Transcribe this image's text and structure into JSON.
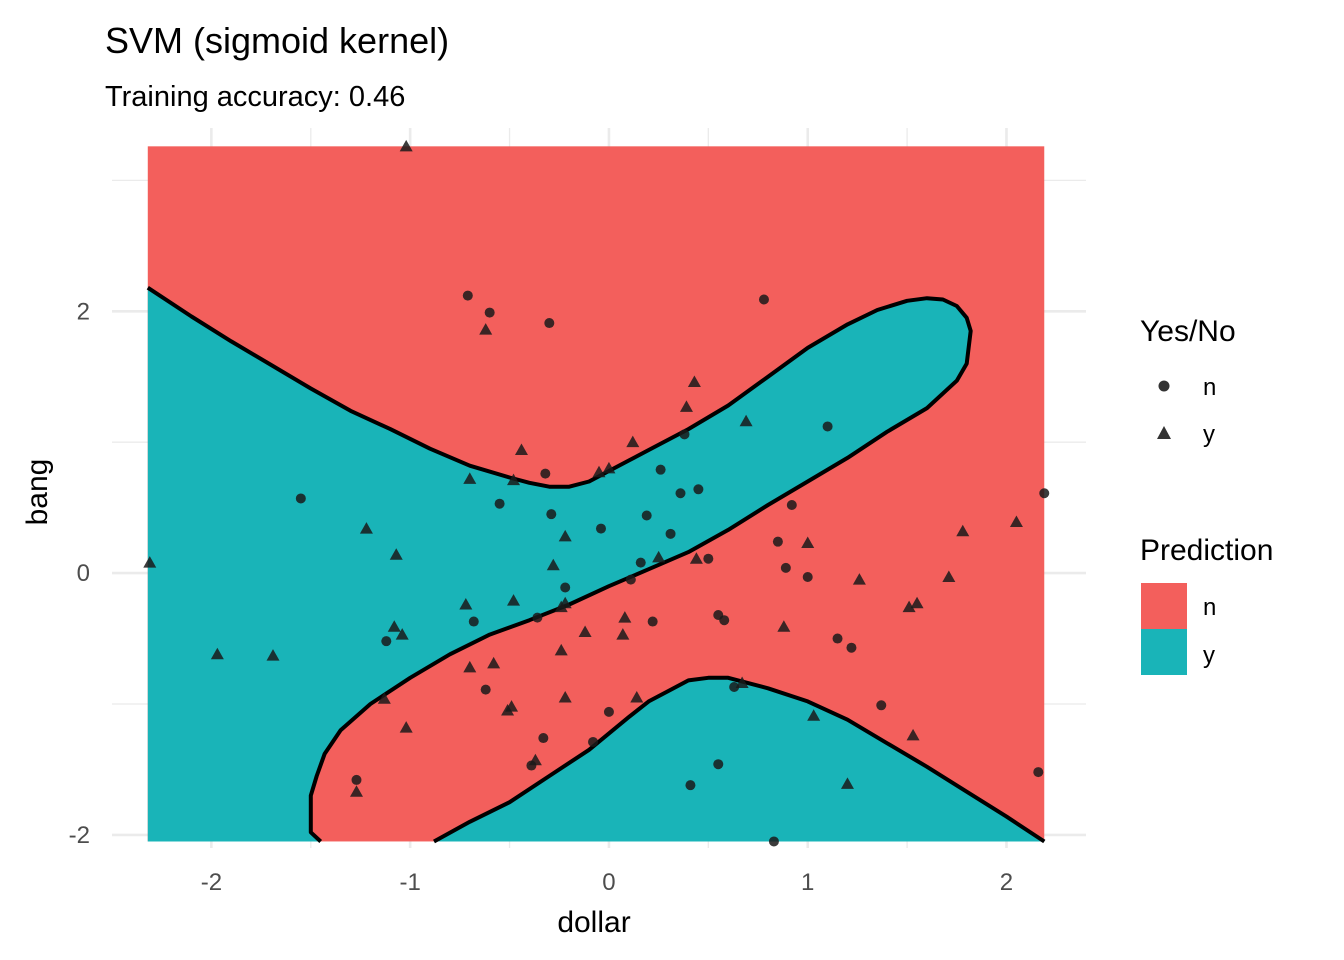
{
  "chart_data": {
    "type": "scatter",
    "title": "SVM (sigmoid kernel)",
    "subtitle": "Training accuracy: 0.46",
    "xlabel": "dollar",
    "ylabel": "bang",
    "xlim": [
      -2.5,
      2.4
    ],
    "ylim": [
      -2.1,
      3.4
    ],
    "x_ticks": [
      "-2",
      "-1",
      "0",
      "1",
      "2"
    ],
    "x_tick_values": [
      -2,
      -1,
      0,
      1,
      2
    ],
    "y_ticks": [
      "2",
      "0",
      "-2"
    ],
    "y_tick_values": [
      2,
      0,
      -2
    ],
    "grid": true,
    "colors": {
      "n": "#F35F5C",
      "y": "#19B4B8",
      "points": "#1a1a1a",
      "boundary": "#000000"
    },
    "region": {
      "xmin": -2.32,
      "xmax": 2.19,
      "ymin": -2.05,
      "ymax": 3.26
    },
    "decision_boundaries": [
      [
        [
          -2.32,
          2.18
        ],
        [
          -2.1,
          1.96
        ],
        [
          -1.9,
          1.77
        ],
        [
          -1.7,
          1.59
        ],
        [
          -1.5,
          1.41
        ],
        [
          -1.3,
          1.24
        ],
        [
          -1.1,
          1.1
        ],
        [
          -0.9,
          0.95
        ],
        [
          -0.7,
          0.82
        ],
        [
          -0.5,
          0.73
        ],
        [
          -0.4,
          0.69
        ],
        [
          -0.3,
          0.66
        ],
        [
          -0.2,
          0.66
        ],
        [
          -0.1,
          0.7
        ],
        [
          0.0,
          0.78
        ],
        [
          0.1,
          0.86
        ],
        [
          0.2,
          0.94
        ],
        [
          0.4,
          1.1
        ],
        [
          0.6,
          1.28
        ],
        [
          0.8,
          1.5
        ],
        [
          1.0,
          1.72
        ],
        [
          1.2,
          1.9
        ],
        [
          1.35,
          2.01
        ],
        [
          1.5,
          2.08
        ],
        [
          1.6,
          2.1
        ],
        [
          1.68,
          2.09
        ],
        [
          1.75,
          2.04
        ],
        [
          1.8,
          1.95
        ],
        [
          1.82,
          1.85
        ],
        [
          1.8,
          1.6
        ],
        [
          1.75,
          1.47
        ],
        [
          1.6,
          1.26
        ],
        [
          1.4,
          1.08
        ],
        [
          1.2,
          0.88
        ],
        [
          1.0,
          0.7
        ],
        [
          0.8,
          0.52
        ],
        [
          0.6,
          0.33
        ],
        [
          0.4,
          0.16
        ],
        [
          0.2,
          0.03
        ],
        [
          0.0,
          -0.1
        ],
        [
          -0.2,
          -0.24
        ],
        [
          -0.4,
          -0.36
        ],
        [
          -0.6,
          -0.47
        ],
        [
          -0.8,
          -0.62
        ],
        [
          -1.0,
          -0.8
        ],
        [
          -1.2,
          -1.0
        ],
        [
          -1.35,
          -1.2
        ],
        [
          -1.43,
          -1.38
        ],
        [
          -1.47,
          -1.55
        ],
        [
          -1.5,
          -1.7
        ],
        [
          -1.5,
          -1.98
        ],
        [
          -1.45,
          -2.05
        ]
      ],
      [
        [
          -0.88,
          -2.05
        ],
        [
          -0.7,
          -1.9
        ],
        [
          -0.5,
          -1.75
        ],
        [
          -0.3,
          -1.55
        ],
        [
          -0.1,
          -1.35
        ],
        [
          0.1,
          -1.1
        ],
        [
          0.2,
          -0.98
        ],
        [
          0.3,
          -0.9
        ],
        [
          0.4,
          -0.82
        ],
        [
          0.5,
          -0.8
        ],
        [
          0.6,
          -0.8
        ],
        [
          0.7,
          -0.84
        ],
        [
          0.8,
          -0.88
        ],
        [
          1.0,
          -0.98
        ],
        [
          1.2,
          -1.12
        ],
        [
          1.4,
          -1.3
        ],
        [
          1.6,
          -1.48
        ],
        [
          1.8,
          -1.67
        ],
        [
          2.0,
          -1.86
        ],
        [
          2.19,
          -2.05
        ]
      ]
    ],
    "legend": {
      "shape_title": "Yes/No",
      "shape_items": [
        {
          "label": "n",
          "shape": "circle"
        },
        {
          "label": "y",
          "shape": "triangle"
        }
      ],
      "fill_title": "Prediction",
      "fill_items": [
        {
          "label": "n",
          "color": "#F35F5C"
        },
        {
          "label": "y",
          "color": "#19B4B8"
        }
      ]
    },
    "series": [
      {
        "name": "n",
        "shape": "circle",
        "points": [
          [
            -0.71,
            2.12
          ],
          [
            -0.6,
            1.99
          ],
          [
            -0.3,
            1.91
          ],
          [
            0.78,
            2.09
          ],
          [
            1.1,
            1.12
          ],
          [
            0.38,
            1.06
          ],
          [
            -0.32,
            0.76
          ],
          [
            0.26,
            0.79
          ],
          [
            0.36,
            0.61
          ],
          [
            0.45,
            0.64
          ],
          [
            -1.55,
            0.57
          ],
          [
            -0.55,
            0.53
          ],
          [
            -0.29,
            0.45
          ],
          [
            0.92,
            0.52
          ],
          [
            0.19,
            0.44
          ],
          [
            -0.04,
            0.34
          ],
          [
            0.31,
            0.3
          ],
          [
            0.85,
            0.24
          ],
          [
            0.5,
            0.11
          ],
          [
            0.16,
            0.08
          ],
          [
            0.89,
            0.04
          ],
          [
            1.0,
            -0.03
          ],
          [
            0.11,
            -0.05
          ],
          [
            -0.22,
            -0.11
          ],
          [
            -0.36,
            -0.34
          ],
          [
            -0.68,
            -0.37
          ],
          [
            0.22,
            -0.37
          ],
          [
            0.55,
            -0.32
          ],
          [
            0.58,
            -0.36
          ],
          [
            -1.12,
            -0.52
          ],
          [
            1.15,
            -0.5
          ],
          [
            1.22,
            -0.57
          ],
          [
            -0.62,
            -0.89
          ],
          [
            1.37,
            -1.01
          ],
          [
            0.0,
            -1.06
          ],
          [
            0.63,
            -0.87
          ],
          [
            -0.33,
            -1.26
          ],
          [
            -0.08,
            -1.29
          ],
          [
            -0.39,
            -1.47
          ],
          [
            0.55,
            -1.46
          ],
          [
            -1.27,
            -1.58
          ],
          [
            0.41,
            -1.62
          ],
          [
            2.16,
            -1.52
          ],
          [
            0.83,
            -2.05
          ],
          [
            2.19,
            0.61
          ]
        ]
      },
      {
        "name": "y",
        "shape": "triangle",
        "points": [
          [
            -1.02,
            3.26
          ],
          [
            -0.62,
            1.86
          ],
          [
            0.43,
            1.46
          ],
          [
            0.39,
            1.27
          ],
          [
            0.69,
            1.16
          ],
          [
            -0.44,
            0.94
          ],
          [
            0.12,
            1.0
          ],
          [
            -0.7,
            0.72
          ],
          [
            -0.48,
            0.71
          ],
          [
            0.0,
            0.8
          ],
          [
            -0.05,
            0.77
          ],
          [
            -1.22,
            0.34
          ],
          [
            -0.22,
            0.28
          ],
          [
            -1.07,
            0.14
          ],
          [
            0.44,
            0.11
          ],
          [
            0.25,
            0.12
          ],
          [
            1.0,
            0.23
          ],
          [
            -0.28,
            0.06
          ],
          [
            -2.31,
            0.08
          ],
          [
            2.05,
            0.39
          ],
          [
            1.78,
            0.32
          ],
          [
            1.71,
            -0.03
          ],
          [
            1.26,
            -0.05
          ],
          [
            1.51,
            -0.26
          ],
          [
            1.55,
            -0.23
          ],
          [
            -0.48,
            -0.21
          ],
          [
            -0.22,
            -0.23
          ],
          [
            -0.24,
            -0.26
          ],
          [
            -0.72,
            -0.24
          ],
          [
            0.08,
            -0.34
          ],
          [
            -1.08,
            -0.41
          ],
          [
            -1.04,
            -0.47
          ],
          [
            0.07,
            -0.47
          ],
          [
            -0.12,
            -0.45
          ],
          [
            0.88,
            -0.41
          ],
          [
            -0.24,
            -0.59
          ],
          [
            -1.97,
            -0.62
          ],
          [
            -1.69,
            -0.63
          ],
          [
            -0.7,
            -0.72
          ],
          [
            -0.58,
            -0.69
          ],
          [
            0.67,
            -0.84
          ],
          [
            -1.13,
            -0.96
          ],
          [
            -0.22,
            -0.95
          ],
          [
            0.14,
            -0.95
          ],
          [
            -0.49,
            -1.02
          ],
          [
            -0.51,
            -1.05
          ],
          [
            1.03,
            -1.09
          ],
          [
            -1.02,
            -1.18
          ],
          [
            1.53,
            -1.24
          ],
          [
            -0.37,
            -1.43
          ],
          [
            1.2,
            -1.61
          ],
          [
            -1.27,
            -1.67
          ]
        ]
      }
    ]
  }
}
